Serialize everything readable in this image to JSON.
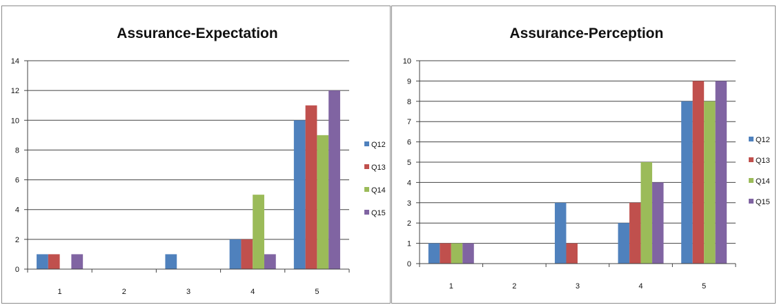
{
  "chart_data": [
    {
      "type": "bar",
      "title": "Assurance-Expectation",
      "xlabel": "",
      "ylabel": "",
      "categories": [
        "1",
        "2",
        "3",
        "4",
        "5"
      ],
      "ylim": [
        0,
        14
      ],
      "yticks": [
        "0",
        "2",
        "4",
        "6",
        "8",
        "10",
        "12",
        "14"
      ],
      "grid": true,
      "legend_position": "right",
      "series": [
        {
          "name": "Q12",
          "color": "#4F81BD",
          "values": [
            1,
            0,
            1,
            2,
            10
          ]
        },
        {
          "name": "Q13",
          "color": "#C0504D",
          "values": [
            1,
            0,
            0,
            2,
            11
          ]
        },
        {
          "name": "Q14",
          "color": "#9BBB59",
          "values": [
            0,
            0,
            0,
            5,
            9
          ]
        },
        {
          "name": "Q15",
          "color": "#8064A2",
          "values": [
            1,
            0,
            0,
            1,
            12
          ]
        }
      ]
    },
    {
      "type": "bar",
      "title": "Assurance-Perception",
      "xlabel": "",
      "ylabel": "",
      "categories": [
        "1",
        "2",
        "3",
        "4",
        "5"
      ],
      "ylim": [
        0,
        10
      ],
      "yticks": [
        "0",
        "1",
        "2",
        "3",
        "4",
        "5",
        "6",
        "7",
        "8",
        "9",
        "10"
      ],
      "grid": true,
      "legend_position": "right",
      "series": [
        {
          "name": "Q12",
          "color": "#4F81BD",
          "values": [
            1,
            0,
            3,
            2,
            8
          ]
        },
        {
          "name": "Q13",
          "color": "#C0504D",
          "values": [
            1,
            0,
            1,
            3,
            9
          ]
        },
        {
          "name": "Q14",
          "color": "#9BBB59",
          "values": [
            1,
            0,
            0,
            5,
            8
          ]
        },
        {
          "name": "Q15",
          "color": "#8064A2",
          "values": [
            1,
            0,
            0,
            4,
            9
          ]
        }
      ]
    }
  ]
}
